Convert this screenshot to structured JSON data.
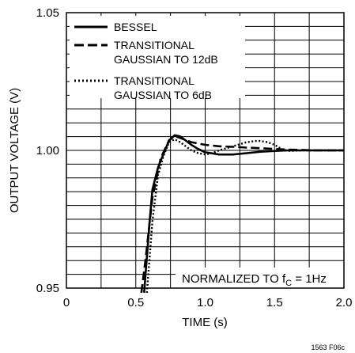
{
  "chart_data": {
    "type": "line",
    "xlabel": "TIME (s)",
    "ylabel": "OUTPUT VOLTAGE (V)",
    "xlim": [
      0,
      2.0
    ],
    "ylim": [
      0.95,
      1.05
    ],
    "x_ticks": [
      0,
      0.5,
      1.0,
      1.5,
      2.0
    ],
    "x_tick_labels": [
      "0",
      "0.5",
      "1.0",
      "1.5",
      "2.0"
    ],
    "y_ticks": [
      0.95,
      1.0,
      1.05
    ],
    "y_tick_labels": [
      "0.95",
      "1.00",
      "1.05"
    ],
    "grid": true,
    "legend_position": "top-left",
    "annotation": {
      "prefix": "NORMALIZED TO f",
      "sub": "C",
      "suffix": " = 1Hz"
    },
    "figure_id": "1563 F06c",
    "series": [
      {
        "name": "BESSEL",
        "style": "solid",
        "points": [
          [
            0.56,
            0.9483
          ],
          [
            0.6,
            0.9744
          ],
          [
            0.62,
            0.9858
          ],
          [
            0.66,
            0.9937
          ],
          [
            0.7,
            0.9988
          ],
          [
            0.74,
            1.0036
          ],
          [
            0.78,
            1.0055
          ],
          [
            0.82,
            1.0051
          ],
          [
            0.86,
            1.0036
          ],
          [
            0.9,
            1.002
          ],
          [
            0.95,
            1.0005
          ],
          [
            1.0,
            0.9993
          ],
          [
            1.1,
            0.9985
          ],
          [
            1.2,
            0.9985
          ],
          [
            1.3,
            0.999
          ],
          [
            1.4,
            0.9995
          ],
          [
            1.5,
            0.9998
          ],
          [
            1.6,
            1.0
          ],
          [
            1.8,
            1.0
          ],
          [
            2.0,
            1.0
          ]
        ]
      },
      {
        "name": "TRANSITIONAL GAUSSIAN TO 12dB",
        "style": "dashed",
        "points": [
          [
            0.54,
            0.9483
          ],
          [
            0.57,
            0.9602
          ],
          [
            0.62,
            0.9829
          ],
          [
            0.68,
            0.9972
          ],
          [
            0.74,
            1.0037
          ],
          [
            0.78,
            1.0052
          ],
          [
            0.82,
            1.0045
          ],
          [
            0.9,
            1.003
          ],
          [
            1.0,
            1.002
          ],
          [
            1.1,
            1.0015
          ],
          [
            1.2,
            1.0013
          ],
          [
            1.3,
            1.001
          ],
          [
            1.4,
            1.0008
          ],
          [
            1.5,
            1.0005
          ],
          [
            1.6,
            1.0003
          ],
          [
            1.8,
            1.0
          ],
          [
            2.0,
            1.0
          ]
        ]
      },
      {
        "name": "TRANSITIONAL GAUSSIAN TO 6dB",
        "style": "dotted",
        "points": [
          [
            0.58,
            0.9483
          ],
          [
            0.62,
            0.9744
          ],
          [
            0.66,
            0.9909
          ],
          [
            0.7,
            0.998
          ],
          [
            0.74,
            1.003
          ],
          [
            0.78,
            1.004
          ],
          [
            0.82,
            1.003
          ],
          [
            0.86,
            1.0015
          ],
          [
            0.9,
            1.0
          ],
          [
            0.95,
            0.999
          ],
          [
            1.0,
            0.9985
          ],
          [
            1.05,
            0.999
          ],
          [
            1.1,
            1.0
          ],
          [
            1.2,
            1.0015
          ],
          [
            1.3,
            1.003
          ],
          [
            1.38,
            1.0035
          ],
          [
            1.45,
            1.003
          ],
          [
            1.5,
            1.002
          ],
          [
            1.55,
            1.0005
          ],
          [
            1.6,
            0.9998
          ],
          [
            1.7,
            1.0
          ],
          [
            2.0,
            1.0
          ]
        ]
      }
    ]
  }
}
